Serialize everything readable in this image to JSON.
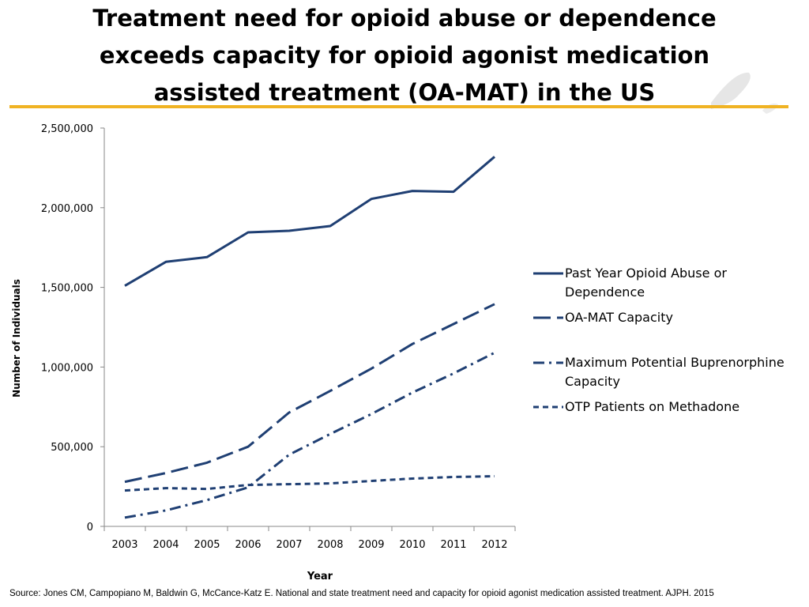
{
  "slide": {
    "title_lines": [
      "Treatment need for opioid abuse or dependence",
      "exceeds capacity for opioid agonist medication",
      "assisted treatment (OA-MAT) in the US"
    ],
    "source": "Source: Jones CM, Campopiano M, Baldwin G, McCance-Katz E. National and state treatment need and capacity for opioid agonist medication assisted treatment. AJPH. 2015",
    "accent_color": "#f0b323"
  },
  "chart_data": {
    "type": "line",
    "title": "",
    "xlabel": "Year",
    "ylabel": "Number of Individuals",
    "ylim": [
      0,
      2500000
    ],
    "yticks": [
      0,
      500000,
      1000000,
      1500000,
      2000000,
      2500000
    ],
    "ytick_labels": [
      "0",
      "500,000",
      "1,000,000",
      "1,500,000",
      "2,000,000",
      "2,500,000"
    ],
    "categories": [
      "2003",
      "2004",
      "2005",
      "2006",
      "2007",
      "2008",
      "2009",
      "2010",
      "2011",
      "2012"
    ],
    "legend_position": "right",
    "series": [
      {
        "name": "Past Year Opioid Abuse or Dependence",
        "label_lines": [
          "Past Year Opioid Abuse or",
          "Dependence"
        ],
        "style": "solid",
        "color": "#1f3f73",
        "values": [
          1510000,
          1660000,
          1690000,
          1845000,
          1855000,
          1885000,
          2055000,
          2105000,
          2100000,
          2320000
        ]
      },
      {
        "name": "OA-MAT Capacity",
        "label_lines": [
          "OA-MAT Capacity"
        ],
        "style": "longdash",
        "color": "#1f3f73",
        "values": [
          280000,
          335000,
          400000,
          500000,
          715000,
          850000,
          990000,
          1145000,
          1270000,
          1395000
        ]
      },
      {
        "name": "Maximum Potential Buprenorphine Capacity",
        "label_lines": [
          "Maximum Potential Buprenorphine",
          "Capacity"
        ],
        "style": "dashdot",
        "color": "#1f3f73",
        "values": [
          55000,
          100000,
          165000,
          245000,
          450000,
          580000,
          705000,
          840000,
          960000,
          1090000
        ]
      },
      {
        "name": "OTP Patients on Methadone",
        "label_lines": [
          "OTP Patients on Methadone"
        ],
        "style": "dash",
        "color": "#1f3f73",
        "values": [
          225000,
          240000,
          235000,
          260000,
          265000,
          270000,
          285000,
          300000,
          310000,
          315000
        ]
      }
    ]
  }
}
